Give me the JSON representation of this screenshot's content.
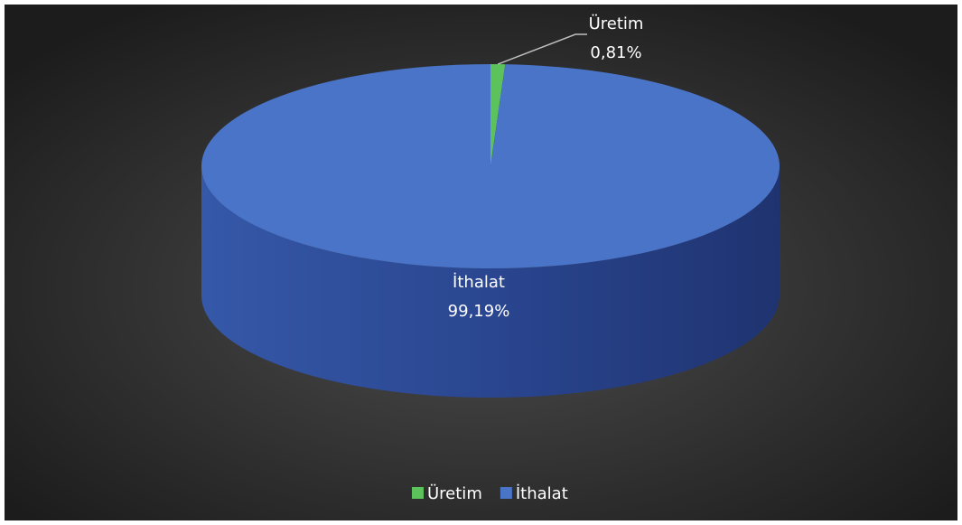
{
  "chart_data": {
    "type": "pie",
    "categories": [
      "Üretim",
      "İthalat"
    ],
    "values": [
      0.81,
      99.19
    ],
    "value_labels": [
      "0,81%",
      "99,19%"
    ],
    "colors": [
      "#5cc35c",
      "#4a74c8"
    ],
    "legend": "bottom"
  }
}
